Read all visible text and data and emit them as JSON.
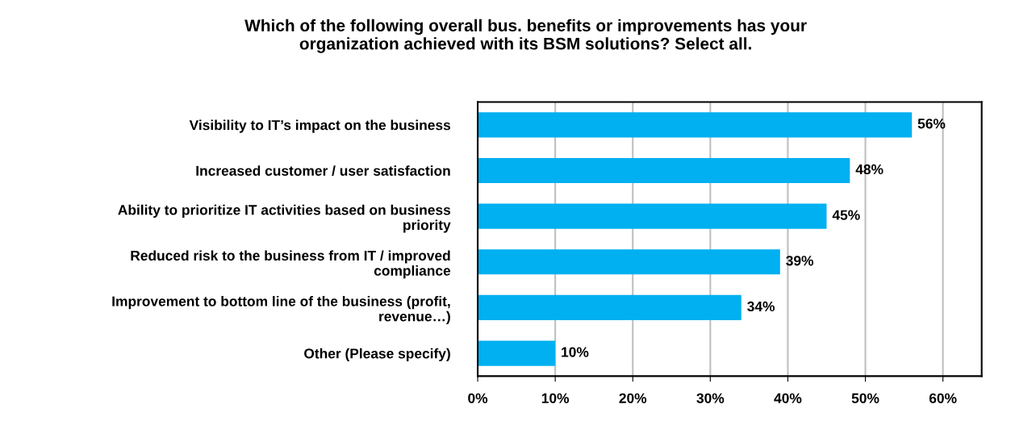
{
  "chart_data": {
    "type": "bar",
    "orientation": "horizontal",
    "title": "Which of the following overall bus. benefits or improvements has your\norganization achieved with its BSM solutions? Select all.",
    "categories": [
      "Visibility to IT’s impact on the business",
      "Increased customer / user satisfaction",
      "Ability to prioritize IT activities based on business\npriority",
      "Reduced risk to the business from IT / improved\ncompliance",
      "Improvement to bottom line of the business (profit,\nrevenue…)",
      "Other (Please specify)"
    ],
    "values": [
      56,
      48,
      45,
      39,
      34,
      10
    ],
    "color": "#00b0f0",
    "value_labels": [
      "56%",
      "48%",
      "45%",
      "39%",
      "34%",
      "10%"
    ],
    "xlim": [
      0,
      65
    ],
    "xticks": [
      {
        "value": 0,
        "label": "0%"
      },
      {
        "value": 10,
        "label": "10%"
      },
      {
        "value": 20,
        "label": "20%"
      },
      {
        "value": 30,
        "label": "30%"
      },
      {
        "value": 40,
        "label": "40%"
      },
      {
        "value": 50,
        "label": "50%"
      },
      {
        "value": 60,
        "label": "60%"
      }
    ],
    "grid": "x",
    "legend": false
  }
}
